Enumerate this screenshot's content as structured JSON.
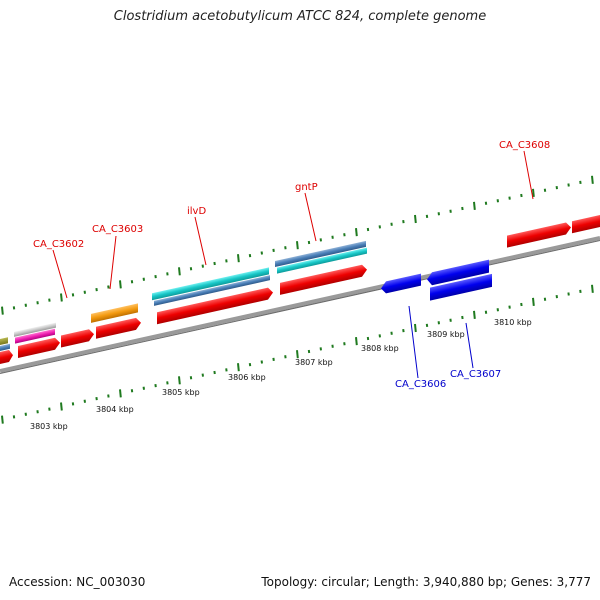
{
  "title": "Clostridium acetobutylicum ATCC 824, complete genome",
  "footer": {
    "accession": "Accession: NC_003030",
    "summary": "Topology: circular; Length: 3,940,880 bp; Genes: 3,777"
  },
  "colors": {
    "backbone": "#8a8a8a",
    "tick": "#1f7a1f",
    "forward_label": "#dd0000",
    "reverse_label": "#0000cc"
  },
  "tick_labels": [
    "3803 kbp",
    "3804 kbp",
    "3805 kbp",
    "3806 kbp",
    "3807 kbp",
    "3808 kbp",
    "3809 kbp",
    "3810 kbp"
  ],
  "genes": {
    "forward_labels": [
      "CA_C3602",
      "CA_C3603",
      "ilvD",
      "gntP",
      "CA_C3608"
    ],
    "reverse_labels": [
      "CA_C3606",
      "CA_C3607"
    ]
  }
}
